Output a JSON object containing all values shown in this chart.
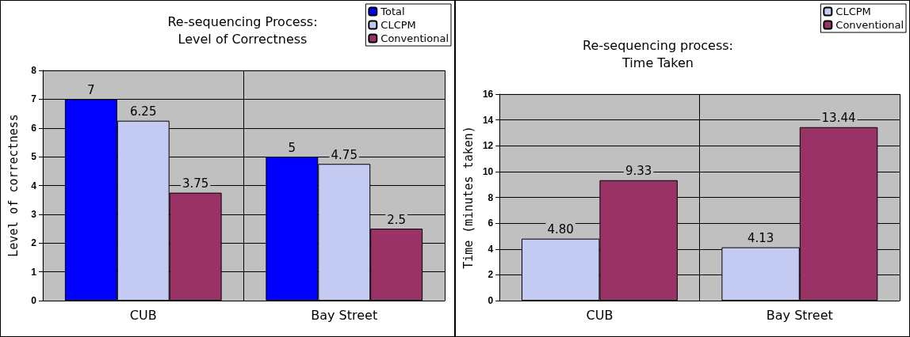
{
  "chart_data": [
    {
      "type": "bar",
      "title": "Re-sequencing Process:\nLevel of Correctness",
      "ylabel": "Level of correctness",
      "categories": [
        "CUB",
        "Bay Street"
      ],
      "series": [
        {
          "name": "Total",
          "color": "#0000ff",
          "values": [
            7,
            5
          ]
        },
        {
          "name": "CLCPM",
          "color": "#c4cbf2",
          "values": [
            6.25,
            4.75
          ]
        },
        {
          "name": "Conventional",
          "color": "#993366",
          "values": [
            3.75,
            2.5
          ]
        }
      ],
      "ylim": [
        0,
        8
      ],
      "yticks": [
        0,
        1,
        2,
        3,
        4,
        5,
        6,
        7,
        8
      ],
      "grid": true,
      "legend": "top right",
      "data_labels": true
    },
    {
      "type": "bar",
      "title": "Re-sequencing process:\nTime Taken",
      "ylabel": "Time (minutes taken)",
      "categories": [
        "CUB",
        "Bay Street"
      ],
      "series": [
        {
          "name": "CLCPM",
          "color": "#c4cbf2",
          "values": [
            4.8,
            4.13
          ],
          "value_labels": [
            "4.80",
            "4.13"
          ]
        },
        {
          "name": "Conventional",
          "color": "#993366",
          "values": [
            9.33,
            13.44
          ]
        }
      ],
      "ylim": [
        0,
        16
      ],
      "yticks": [
        0,
        2,
        4,
        6,
        8,
        10,
        12,
        14,
        16
      ],
      "grid": true,
      "legend": "top right",
      "data_labels": true
    }
  ]
}
